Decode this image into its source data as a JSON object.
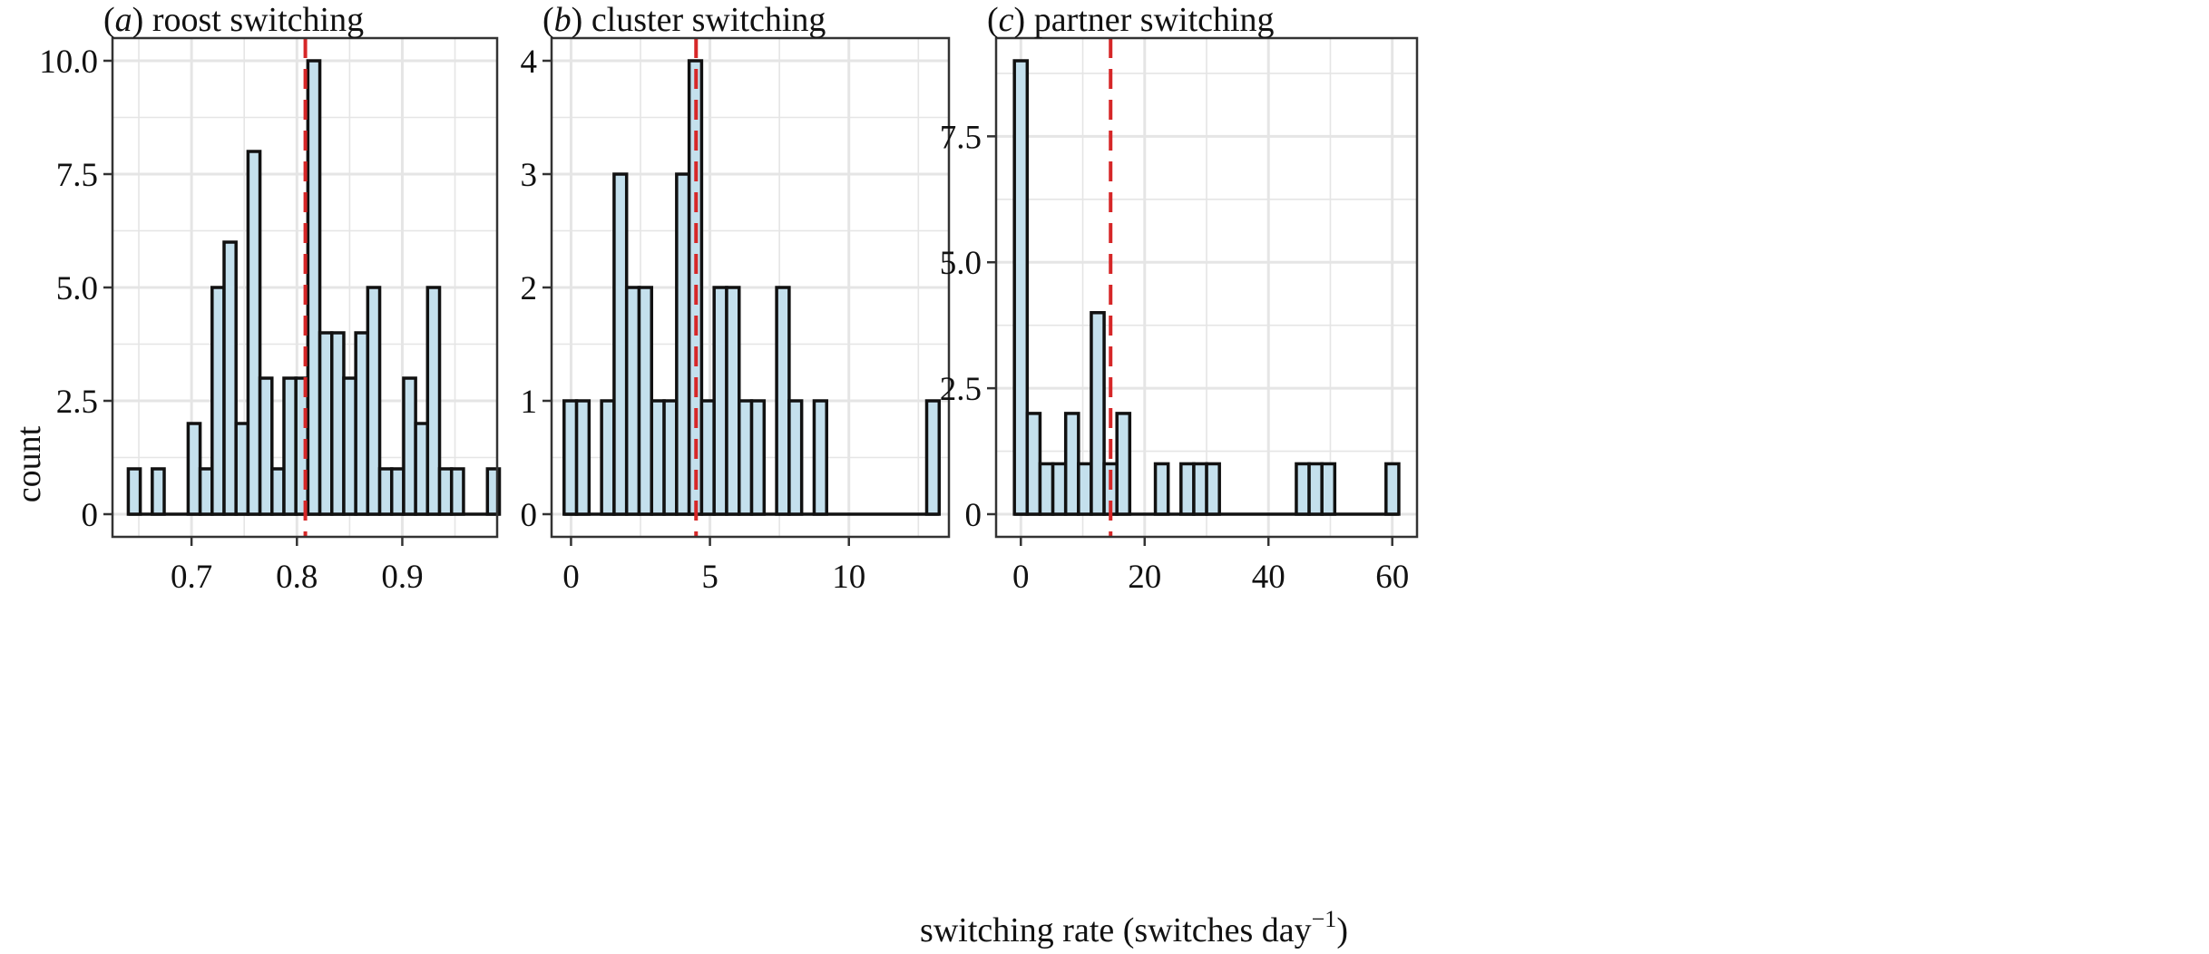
{
  "ylabel": "count",
  "xlabel": "switching rate (switches day",
  "xlabel_sup": "−1",
  "xlabel_close": ")",
  "colors": {
    "bar_fill": "#c4e0ed",
    "bar_stroke": "#111111",
    "mean_line": "#d62728",
    "grid": "#e5e5e5"
  },
  "chart_data": [
    {
      "type": "bar",
      "panel_letter": "a",
      "title": "roost switching",
      "bin_start": 0.64,
      "bin_width": 0.01136,
      "counts": [
        1,
        0,
        1,
        0,
        0,
        2,
        1,
        5,
        6,
        2,
        8,
        3,
        1,
        3,
        3,
        10,
        4,
        4,
        3,
        4,
        5,
        1,
        1,
        3,
        2,
        5,
        1,
        1,
        0,
        0,
        1
      ],
      "mean_line": 0.808,
      "xlim": [
        0.625,
        0.99
      ],
      "ylim": [
        -0.5,
        10.5
      ],
      "x_ticks": [
        0.7,
        0.8,
        0.9
      ],
      "x_tick_labels": [
        "0.7",
        "0.8",
        "0.9"
      ],
      "y_ticks": [
        0,
        2.5,
        5,
        7.5,
        10
      ],
      "y_tick_labels": [
        "0",
        "2.5",
        "5.0",
        "7.5",
        "10.0"
      ],
      "grid": true
    },
    {
      "type": "bar",
      "panel_letter": "b",
      "title": "cluster switching",
      "bin_start": -0.25,
      "bin_width": 0.45,
      "counts": [
        1,
        1,
        0,
        1,
        3,
        2,
        2,
        1,
        1,
        3,
        4,
        1,
        2,
        2,
        1,
        1,
        0,
        2,
        1,
        0,
        1,
        0,
        0,
        0,
        0,
        0,
        0,
        0,
        0,
        1
      ],
      "mean_line": 4.5,
      "xlim": [
        -0.7,
        13.6
      ],
      "ylim": [
        -0.2,
        4.2
      ],
      "x_ticks": [
        0,
        5,
        10
      ],
      "x_tick_labels": [
        "0",
        "5",
        "10"
      ],
      "y_ticks": [
        0,
        1,
        2,
        3,
        4
      ],
      "y_tick_labels": [
        "0",
        "1",
        "2",
        "3",
        "4"
      ],
      "grid": true
    },
    {
      "type": "bar",
      "panel_letter": "c",
      "title": "partner switching",
      "bin_start": -1.04,
      "bin_width": 2.07,
      "counts": [
        9,
        2,
        1,
        1,
        2,
        1,
        4,
        1,
        2,
        0,
        0,
        1,
        0,
        1,
        1,
        1,
        0,
        0,
        0,
        0,
        0,
        0,
        1,
        1,
        1,
        0,
        0,
        0,
        0,
        1
      ],
      "mean_line": 14.5,
      "xlim": [
        -4,
        64
      ],
      "ylim": [
        -0.45,
        9.45
      ],
      "x_ticks": [
        0,
        20,
        40,
        60
      ],
      "x_tick_labels": [
        "0",
        "20",
        "40",
        "60"
      ],
      "y_ticks": [
        0,
        2.5,
        5,
        7.5
      ],
      "y_tick_labels": [
        "0",
        "2.5",
        "5.0",
        "7.5"
      ],
      "grid": true
    }
  ]
}
